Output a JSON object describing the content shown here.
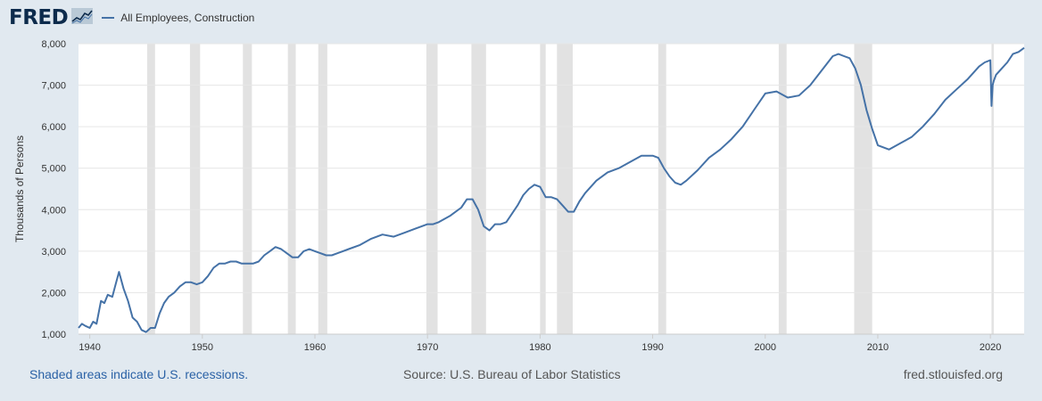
{
  "header": {
    "logo_text": "FRED",
    "logo_icon": "chart-line-icon",
    "legend_label": "All Employees, Construction"
  },
  "colors": {
    "background": "#e1e9f0",
    "plot_background": "#ffffff",
    "series": "#4572a7",
    "recession": "#e2e2e2",
    "gridline": "#e6e6e6",
    "link": "#2b62a6"
  },
  "footer": {
    "recession_note": "Shaded areas indicate U.S. recessions.",
    "source": "Source: U.S. Bureau of Labor Statistics",
    "site": "fred.stlouisfed.org"
  },
  "chart_data": {
    "type": "line",
    "title": "",
    "xlabel": "",
    "ylabel": "Thousands of Persons",
    "xlim": [
      1939.0,
      2023.0
    ],
    "ylim": [
      1000,
      8000
    ],
    "x_ticks": [
      1940,
      1950,
      1960,
      1970,
      1980,
      1990,
      2000,
      2010,
      2020
    ],
    "y_ticks": [
      1000,
      2000,
      3000,
      4000,
      5000,
      6000,
      7000,
      8000
    ],
    "y_tick_labels": [
      "1,000",
      "2,000",
      "3,000",
      "4,000",
      "5,000",
      "6,000",
      "7,000",
      "8,000"
    ],
    "grid": "horizontal",
    "legend": "top-left",
    "recessions": [
      [
        1945.1,
        1945.8
      ],
      [
        1948.9,
        1949.8
      ],
      [
        1953.6,
        1954.4
      ],
      [
        1957.6,
        1958.3
      ],
      [
        1960.3,
        1961.1
      ],
      [
        1969.9,
        1970.9
      ],
      [
        1973.9,
        1975.2
      ],
      [
        1980.0,
        1980.5
      ],
      [
        1981.5,
        1982.9
      ],
      [
        1990.5,
        1991.2
      ],
      [
        2001.2,
        2001.9
      ],
      [
        2007.9,
        2009.5
      ],
      [
        2020.1,
        2020.3
      ]
    ],
    "series": [
      {
        "name": "All Employees, Construction",
        "x": [
          1939.0,
          1939.3,
          1939.6,
          1940.0,
          1940.3,
          1940.6,
          1941.0,
          1941.3,
          1941.6,
          1942.0,
          1942.3,
          1942.6,
          1943.0,
          1943.4,
          1943.8,
          1944.2,
          1944.6,
          1945.0,
          1945.4,
          1945.8,
          1946.2,
          1946.6,
          1947.0,
          1947.5,
          1948.0,
          1948.5,
          1949.0,
          1949.5,
          1950.0,
          1950.5,
          1951.0,
          1951.5,
          1952.0,
          1952.5,
          1953.0,
          1953.5,
          1954.0,
          1954.5,
          1955.0,
          1955.5,
          1956.0,
          1956.5,
          1957.0,
          1957.5,
          1958.0,
          1958.5,
          1959.0,
          1959.5,
          1960.0,
          1960.5,
          1961.0,
          1961.5,
          1962.0,
          1963.0,
          1964.0,
          1965.0,
          1966.0,
          1967.0,
          1968.0,
          1969.0,
          1970.0,
          1970.5,
          1971.0,
          1972.0,
          1973.0,
          1973.5,
          1974.0,
          1974.5,
          1975.0,
          1975.5,
          1976.0,
          1976.5,
          1977.0,
          1977.5,
          1978.0,
          1978.5,
          1979.0,
          1979.5,
          1980.0,
          1980.5,
          1981.0,
          1981.5,
          1982.0,
          1982.5,
          1983.0,
          1983.5,
          1984.0,
          1985.0,
          1986.0,
          1987.0,
          1988.0,
          1989.0,
          1990.0,
          1990.5,
          1991.0,
          1991.5,
          1992.0,
          1992.5,
          1993.0,
          1994.0,
          1995.0,
          1996.0,
          1997.0,
          1998.0,
          1999.0,
          2000.0,
          2001.0,
          2002.0,
          2003.0,
          2004.0,
          2005.0,
          2006.0,
          2006.5,
          2007.0,
          2007.5,
          2008.0,
          2008.5,
          2009.0,
          2009.5,
          2010.0,
          2010.5,
          2011.0,
          2012.0,
          2013.0,
          2014.0,
          2015.0,
          2016.0,
          2017.0,
          2018.0,
          2019.0,
          2019.5,
          2020.0,
          2020.1,
          2020.2,
          2020.3,
          2020.5,
          2021.0,
          2021.5,
          2022.0,
          2022.5,
          2023.0
        ],
        "values": [
          1150,
          1250,
          1200,
          1150,
          1300,
          1250,
          1800,
          1750,
          1950,
          1900,
          2200,
          2500,
          2100,
          1800,
          1400,
          1300,
          1100,
          1050,
          1150,
          1150,
          1500,
          1750,
          1900,
          2000,
          2150,
          2250,
          2250,
          2200,
          2250,
          2400,
          2600,
          2700,
          2700,
          2750,
          2750,
          2700,
          2700,
          2700,
          2750,
          2900,
          3000,
          3100,
          3050,
          2950,
          2850,
          2850,
          3000,
          3050,
          3000,
          2950,
          2900,
          2900,
          2950,
          3050,
          3150,
          3300,
          3400,
          3350,
          3450,
          3550,
          3650,
          3650,
          3700,
          3850,
          4050,
          4250,
          4250,
          4000,
          3600,
          3500,
          3650,
          3650,
          3700,
          3900,
          4100,
          4350,
          4500,
          4600,
          4550,
          4300,
          4300,
          4250,
          4100,
          3950,
          3950,
          4200,
          4400,
          4700,
          4900,
          5000,
          5150,
          5300,
          5300,
          5250,
          5000,
          4800,
          4650,
          4600,
          4700,
          4950,
          5250,
          5450,
          5700,
          6000,
          6400,
          6800,
          6850,
          6700,
          6750,
          7000,
          7350,
          7700,
          7750,
          7700,
          7650,
          7400,
          7000,
          6400,
          5950,
          5550,
          5500,
          5450,
          5600,
          5750,
          6000,
          6300,
          6650,
          6900,
          7150,
          7450,
          7550,
          7600,
          6500,
          7000,
          7100,
          7250,
          7400,
          7550,
          7750,
          7800,
          7900
        ]
      }
    ]
  }
}
